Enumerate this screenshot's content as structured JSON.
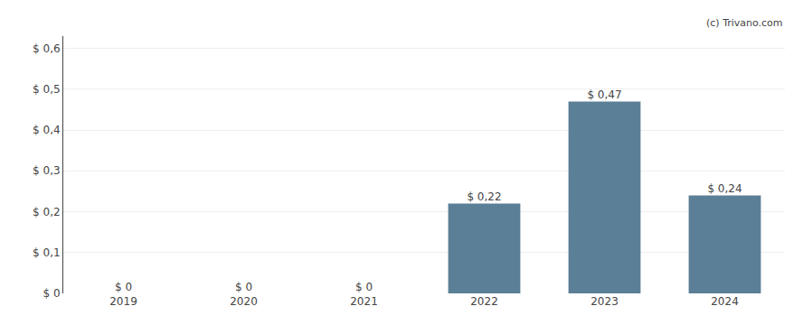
{
  "chart_data": {
    "type": "bar",
    "categories": [
      "2019",
      "2020",
      "2021",
      "2022",
      "2023",
      "2024"
    ],
    "values": [
      0,
      0,
      0,
      0.22,
      0.47,
      0.24
    ],
    "value_labels": [
      "$ 0",
      "$ 0",
      "$ 0",
      "$ 0,22",
      "$ 0,47",
      "$ 0,24"
    ],
    "data_labels": true,
    "color": "#5b7f96",
    "ylim": [
      0,
      0.63
    ],
    "yticks": [
      {
        "value": 0.0,
        "label": "$ 0"
      },
      {
        "value": 0.1,
        "label": "$ 0,1"
      },
      {
        "value": 0.2,
        "label": "$ 0,2"
      },
      {
        "value": 0.3,
        "label": "$ 0,3"
      },
      {
        "value": 0.4,
        "label": "$ 0,4"
      },
      {
        "value": 0.5,
        "label": "$ 0,5"
      },
      {
        "value": 0.6,
        "label": "$ 0,6"
      }
    ],
    "grid": true,
    "annotations": [
      "(c) Trivano.com"
    ]
  }
}
